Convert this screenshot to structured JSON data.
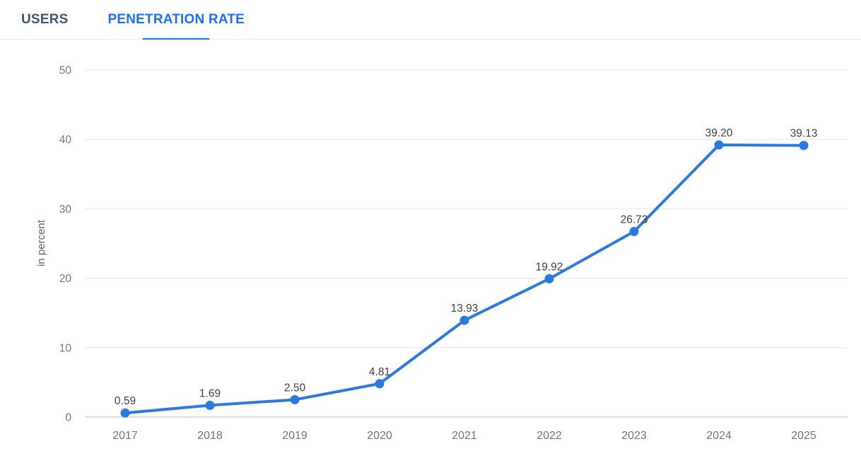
{
  "tabs": [
    {
      "label": "USERS",
      "active": false
    },
    {
      "label": "PENETRATION RATE",
      "active": true
    }
  ],
  "chart_data": {
    "type": "line",
    "title": "",
    "categories": [
      "2017",
      "2018",
      "2019",
      "2020",
      "2021",
      "2022",
      "2023",
      "2024",
      "2025"
    ],
    "series": [
      {
        "name": "PENETRATION RATE",
        "values": [
          0.59,
          1.69,
          2.5,
          4.81,
          13.93,
          19.92,
          26.73,
          39.2,
          39.13
        ],
        "labels": [
          "0.59",
          "1.69",
          "2.50",
          "4.81",
          "13.93",
          "19.92",
          "26.73",
          "39.20",
          "39.13"
        ]
      }
    ],
    "xlabel": "",
    "ylabel": "in percent",
    "yticks": [
      0,
      10,
      20,
      30,
      40,
      50
    ],
    "ylim": [
      0,
      55
    ],
    "grid": true,
    "legend": "none"
  },
  "colors": {
    "accent_tab": "#1a73e8",
    "inactive_tab_text": "#44546b",
    "tab_border": "#e9eef6",
    "series_line": "#2d79dd",
    "point_fill": "#2d79dd",
    "grid_line": "#ececec",
    "zero_axis": "#d7ddea",
    "tick_text": "#757575",
    "axis_label_text": "#666666",
    "data_label_text": "#404040",
    "background": "#ffffff"
  }
}
